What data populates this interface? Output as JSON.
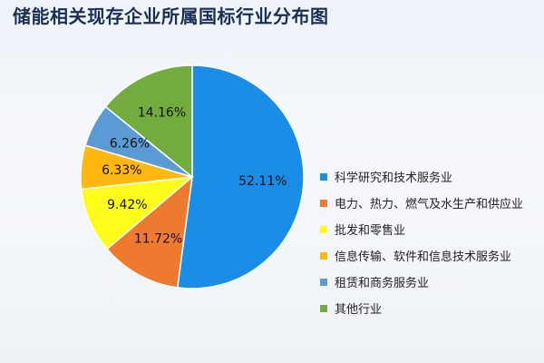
{
  "chart_data": {
    "type": "pie",
    "title": "储能相关现存企业所属国标行业分布图",
    "legend_position": "right",
    "slices": [
      {
        "label": "科学研究和技术服务业",
        "value": 52.11,
        "value_label": "52.11%",
        "color": "#1a8ee6"
      },
      {
        "label": "电力、热力、燃气及水生产和供应业",
        "value": 11.72,
        "value_label": "11.72%",
        "color": "#ed7a2f"
      },
      {
        "label": "批发和零售业",
        "value": 9.42,
        "value_label": "9.42%",
        "color": "#fffb1a"
      },
      {
        "label": "信息传输、软件和信息技术服务业",
        "value": 6.33,
        "value_label": "6.33%",
        "color": "#ffb810"
      },
      {
        "label": "租赁和商务服务业",
        "value": 6.26,
        "value_label": "6.26%",
        "color": "#5b9bd5"
      },
      {
        "label": "其他行业",
        "value": 14.16,
        "value_label": "14.16%",
        "color": "#72ac3f"
      }
    ]
  }
}
